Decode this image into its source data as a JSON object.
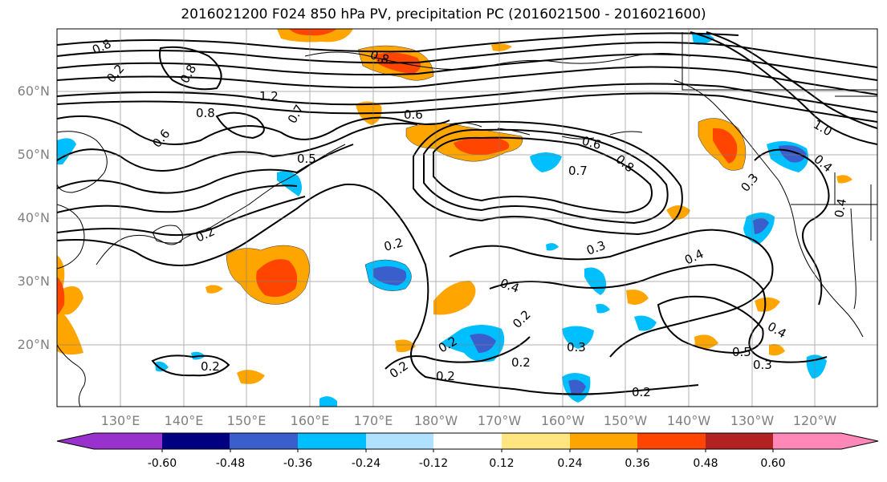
{
  "title": "2016021200 F024 850 hPa PV, precipitation PC (2016021500 - 2016021600)",
  "lat_labels": [
    "60°N",
    "50°N",
    "40°N",
    "30°N",
    "20°N"
  ],
  "lon_labels": [
    "130°E",
    "140°E",
    "150°E",
    "160°E",
    "170°E",
    "180°W",
    "170°W",
    "160°W",
    "150°W",
    "140°W",
    "130°W",
    "120°W"
  ],
  "contour_labels": [
    "0.8",
    "0.2",
    "1.2",
    "0.8",
    "0.6",
    "0.7",
    "0.5",
    "0.8",
    "0.6",
    "0.6",
    "0.8",
    "0.7",
    "0.8",
    "0.2",
    "0.2",
    "0.3",
    "0.4",
    "0.4",
    "0.3",
    "0.2",
    "0.2",
    "0.2",
    "0.2",
    "0.3",
    "0.2",
    "0.2",
    "0.4",
    "0.5",
    "0.3",
    "0.4",
    "1.0",
    "0.4",
    "0.2"
  ],
  "colorbar": {
    "colors": [
      "#9932cc",
      "#000080",
      "#3a5fcd",
      "#00bfff",
      "#b0e2ff",
      "#ffffff",
      "#ffe680",
      "#ffa500",
      "#ff4500",
      "#b22222",
      "#ff88b8"
    ],
    "tick_labels": [
      "-0.60",
      "-0.48",
      "-0.36",
      "-0.24",
      "-0.12",
      "0.12",
      "0.24",
      "0.36",
      "0.48",
      "0.60"
    ]
  }
}
